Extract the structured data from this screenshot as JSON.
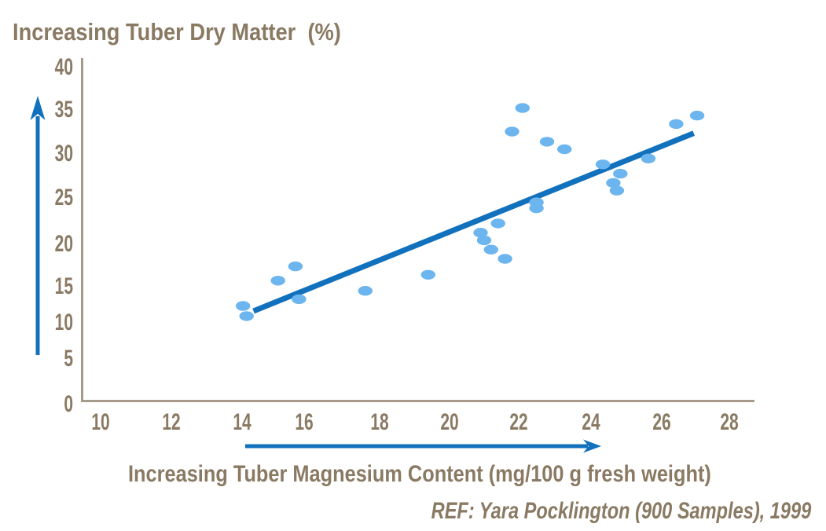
{
  "chart_data": {
    "type": "scatter",
    "title": "Increasing Tuber Dry Matter  (%)",
    "xlabel": "Increasing Tuber Magnesium Content (mg/100 g fresh weight)",
    "ref": "REF: Yara Pocklington (900 Samples), 1999",
    "x_ticks": [
      10,
      12,
      14,
      16,
      18,
      20,
      22,
      24,
      26,
      28
    ],
    "y_ticks": [
      0,
      5,
      10,
      15,
      20,
      25,
      30,
      35,
      40
    ],
    "xlim": [
      10,
      28
    ],
    "ylim": [
      0,
      40
    ],
    "grid": false,
    "points": [
      [
        14.1,
        11.7
      ],
      [
        14.2,
        10.5
      ],
      [
        15.1,
        14.7
      ],
      [
        15.6,
        16.4
      ],
      [
        15.7,
        12.5
      ],
      [
        17.6,
        13.5
      ],
      [
        19.4,
        15.4
      ],
      [
        20.9,
        20.4
      ],
      [
        21.4,
        21.5
      ],
      [
        21.0,
        19.5
      ],
      [
        21.2,
        18.4
      ],
      [
        21.6,
        17.3
      ],
      [
        22.5,
        24.0
      ],
      [
        22.5,
        23.3
      ],
      [
        21.8,
        32.4
      ],
      [
        22.1,
        35.2
      ],
      [
        22.8,
        31.2
      ],
      [
        23.3,
        30.3
      ],
      [
        24.4,
        28.5
      ],
      [
        24.9,
        27.4
      ],
      [
        24.7,
        26.3
      ],
      [
        24.8,
        25.4
      ],
      [
        25.7,
        29.2
      ],
      [
        26.5,
        33.3
      ],
      [
        27.1,
        34.3
      ]
    ],
    "trend": {
      "x1": 14.4,
      "y1": 11.1,
      "x2": 27.0,
      "y2": 32.2
    },
    "colors": {
      "text": "#8a7a63",
      "axis": "#a69a89",
      "arrow": "#1271bd",
      "point": "#6cb5ef",
      "trend": "#1271bd"
    }
  }
}
